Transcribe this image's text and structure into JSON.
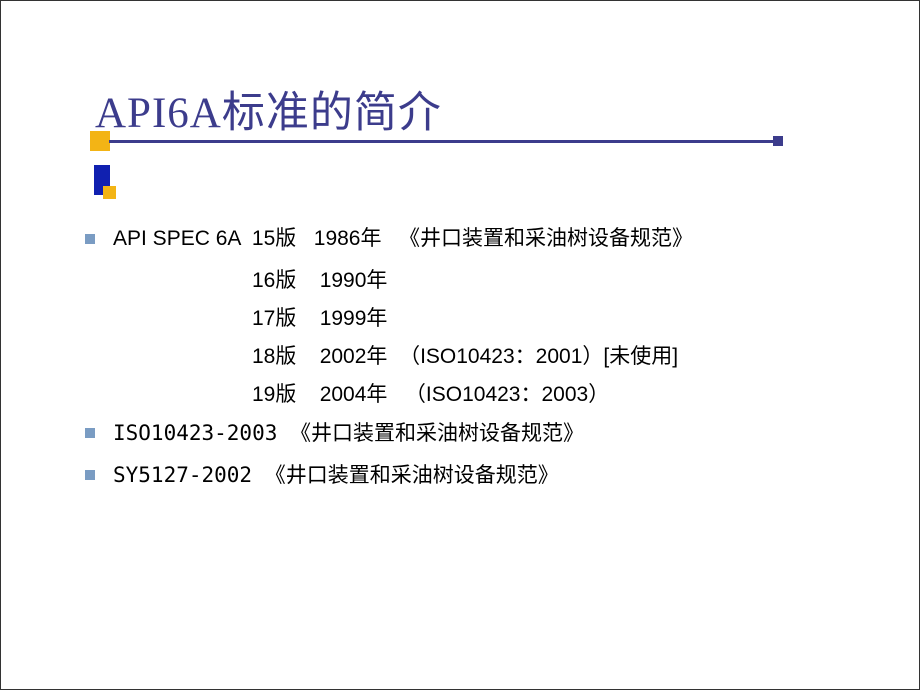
{
  "title": "API6A标准的简介",
  "colors": {
    "title_color": "#3c3c8c",
    "underline_color": "#3c3c8c",
    "accent_yellow": "#f3b415",
    "accent_blue": "#1020b0",
    "bullet_color": "#7a9cc3",
    "text_color": "#000000",
    "background": "#ffffff"
  },
  "bullets": [
    {
      "main": "API SPEC 6A  15版   1986年   《井口装置和采油树设备规范》",
      "sublines": [
        "16版    1990年",
        "17版    1999年",
        "18版    2002年  （ISO10423：2001）[未使用]",
        "19版    2004年   （ISO10423：2003）"
      ]
    },
    {
      "main": "ISO10423-2003 《井口装置和采油树设备规范》",
      "sublines": []
    },
    {
      "main": "SY5127-2002 《井口装置和采油树设备规范》",
      "sublines": []
    }
  ]
}
